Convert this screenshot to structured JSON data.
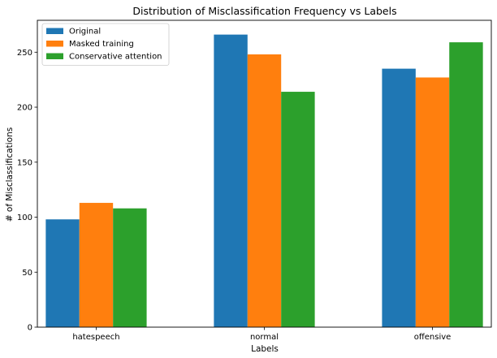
{
  "chart_data": {
    "type": "bar",
    "title": "Distribution of Misclassification Frequency vs Labels",
    "xlabel": "Labels",
    "ylabel": "# of Misclassifications",
    "categories": [
      "hatespeech",
      "normal",
      "offensive"
    ],
    "series": [
      {
        "name": "Original",
        "color": "#1f77b4",
        "values": [
          98,
          266,
          235
        ]
      },
      {
        "name": "Masked training",
        "color": "#ff7f0e",
        "values": [
          113,
          248,
          227
        ]
      },
      {
        "name": "Conservative attention",
        "color": "#2ca02c",
        "values": [
          108,
          214,
          259
        ]
      }
    ],
    "ylim": [
      0,
      279
    ],
    "yticks": [
      0,
      50,
      100,
      150,
      200,
      250
    ],
    "grid": false,
    "legend_position": "top-left"
  }
}
